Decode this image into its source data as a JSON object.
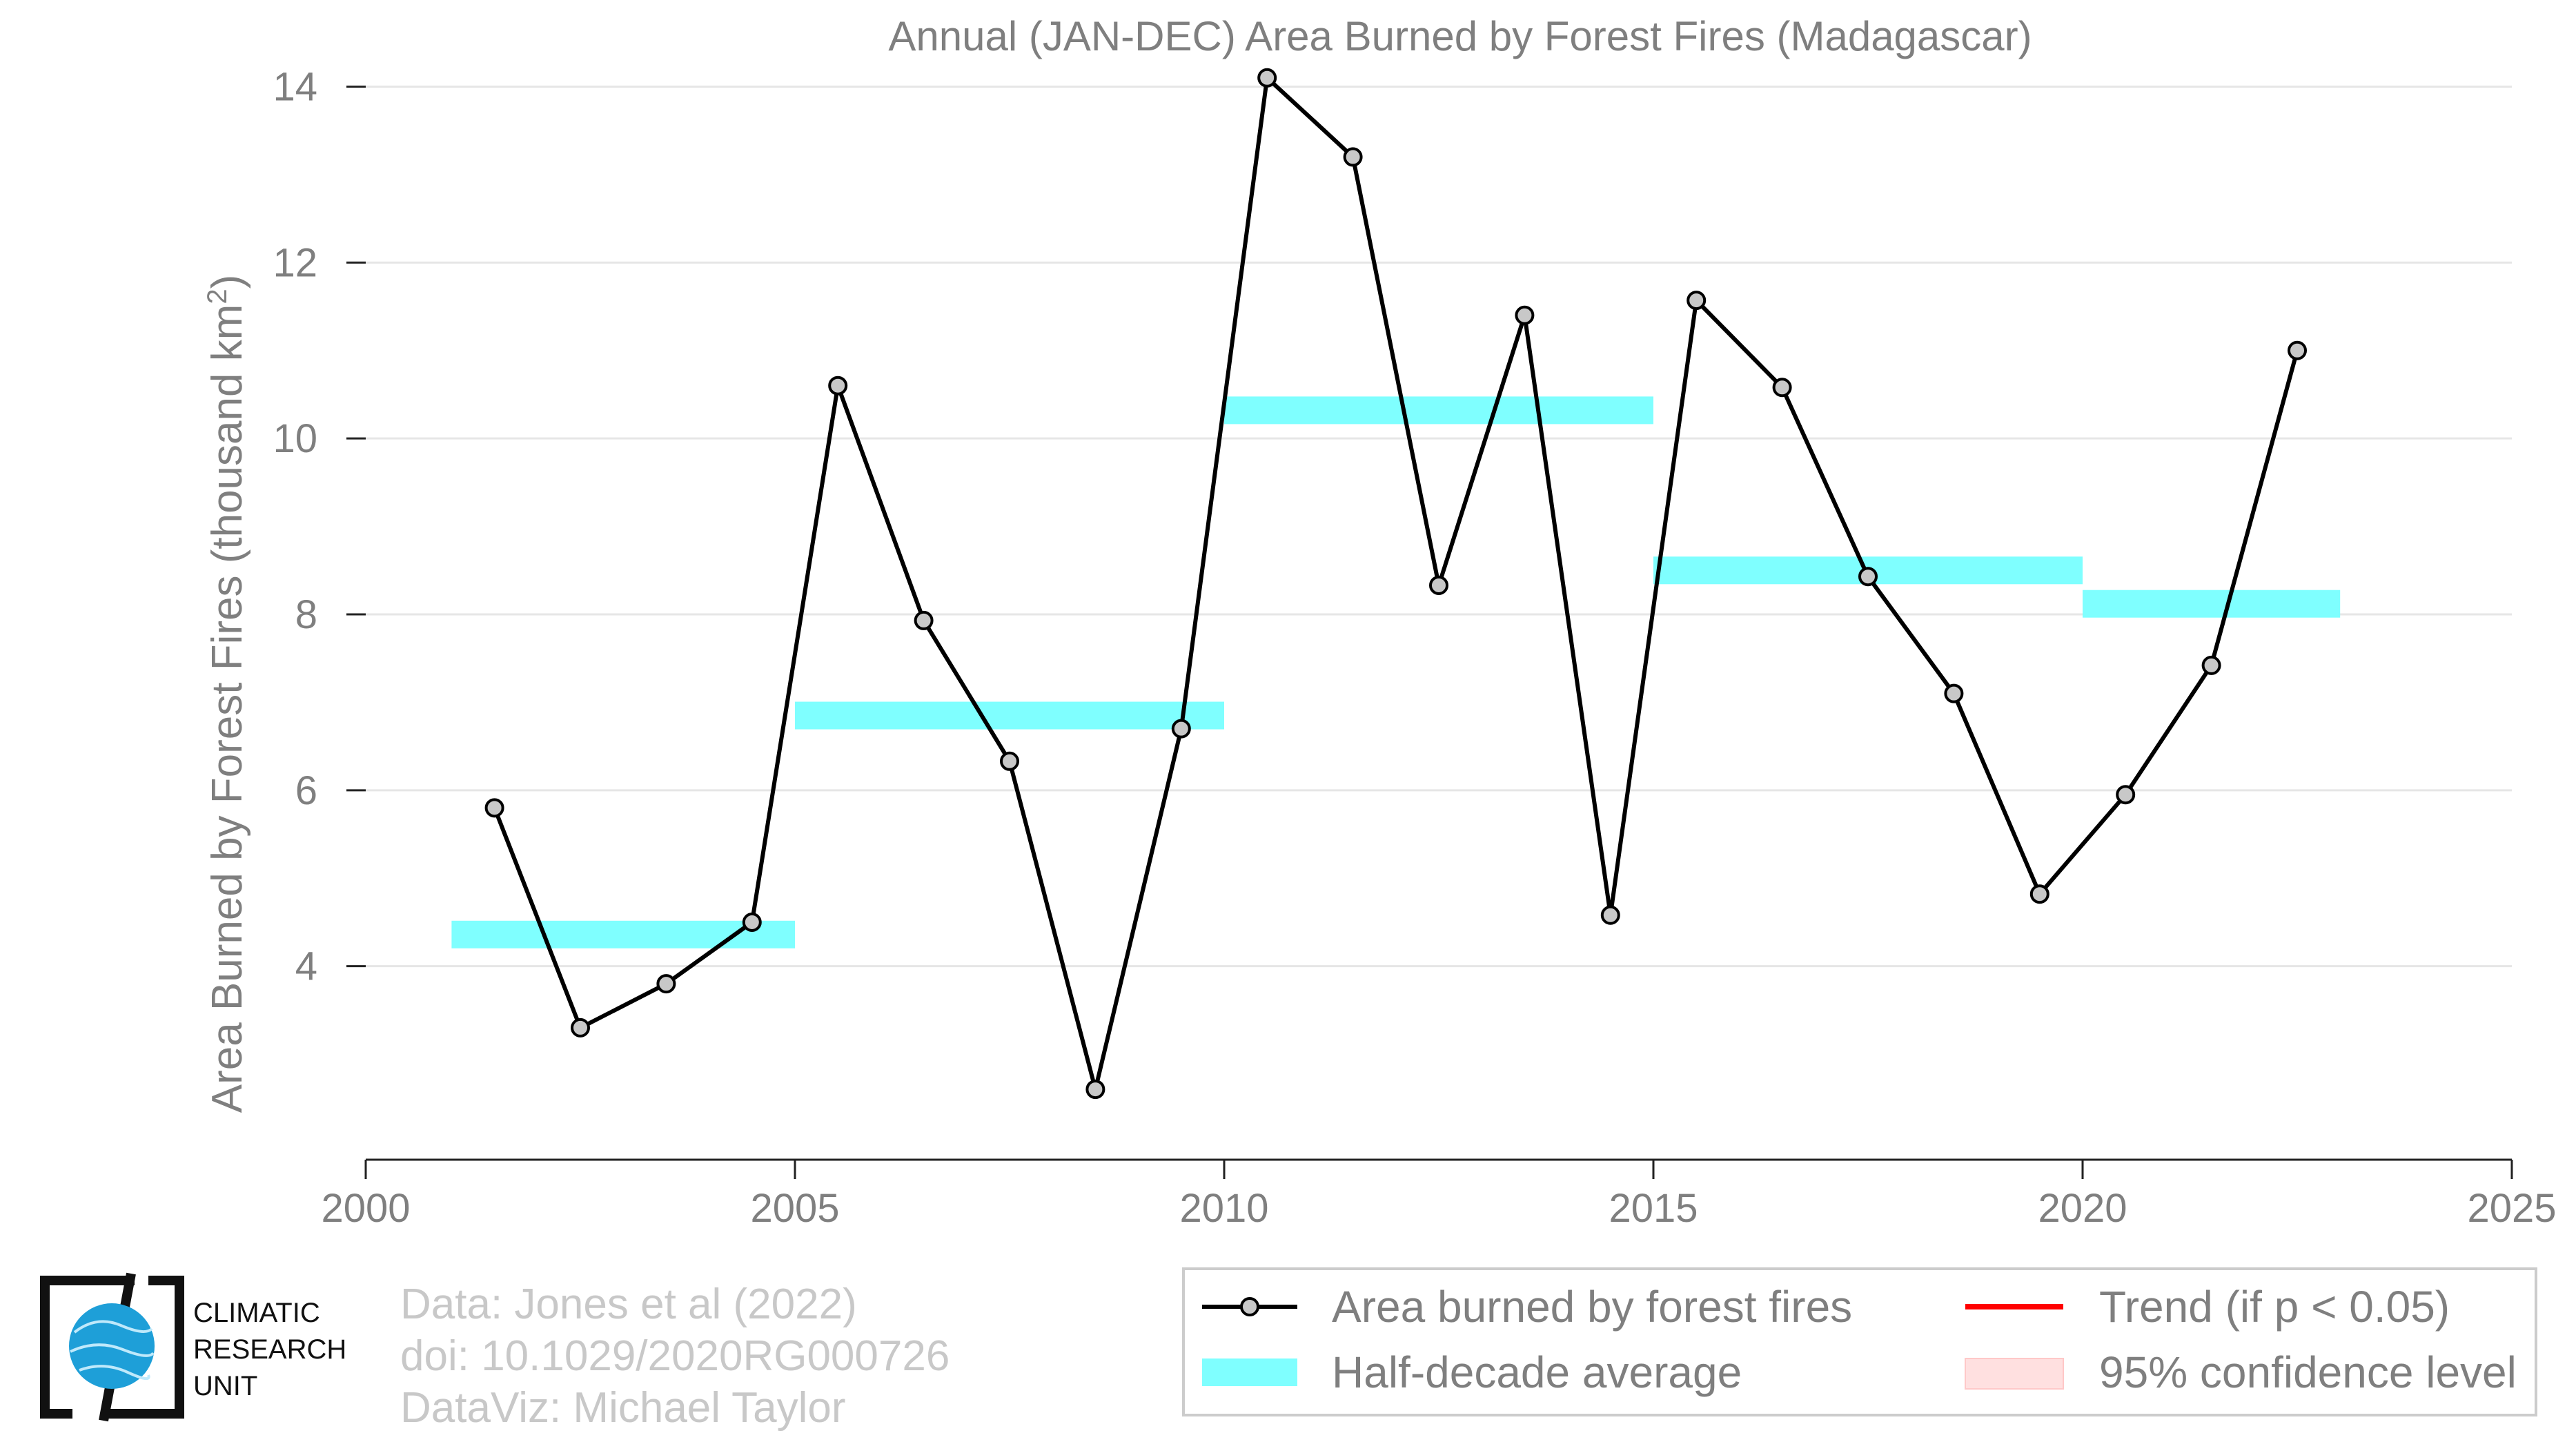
{
  "chart_data": {
    "type": "line",
    "title": "Annual (JAN-DEC) Area Burned by Forest Fires (Madagascar)",
    "xlabel": "",
    "ylabel": "Area Burned by Forest Fires (thousand km",
    "ylabel_sup": "2",
    "ylabel_close": ")",
    "xlim": [
      2000,
      2025
    ],
    "ylim": [
      1.8,
      14.2
    ],
    "x_ticks": [
      2000,
      2005,
      2010,
      2015,
      2020,
      2025
    ],
    "y_ticks": [
      4,
      6,
      8,
      10,
      12,
      14
    ],
    "grid": "horizontal",
    "legend_position": "bottom-right",
    "series": [
      {
        "name": "Area burned by forest fires",
        "kind": "line-markers",
        "color": "#000000",
        "marker_color": "#c8c8c8",
        "x": [
          2001.5,
          2002.5,
          2003.5,
          2004.5,
          2005.5,
          2006.5,
          2007.5,
          2008.5,
          2009.5,
          2010.5,
          2011.5,
          2012.5,
          2013.5,
          2014.5,
          2015.5,
          2016.5,
          2017.5,
          2018.5,
          2019.5,
          2020.5,
          2021.5,
          2022.5
        ],
        "y": [
          5.8,
          3.3,
          3.8,
          4.5,
          10.6,
          7.93,
          6.33,
          2.6,
          6.7,
          14.1,
          13.2,
          8.33,
          11.4,
          4.58,
          11.57,
          10.58,
          8.43,
          7.1,
          4.82,
          5.95,
          7.42,
          11.0
        ]
      },
      {
        "name": "Half-decade average",
        "kind": "segments",
        "color": "#7fffff",
        "segments": [
          {
            "x0": 2001,
            "x1": 2005,
            "y": 4.36
          },
          {
            "x0": 2005,
            "x1": 2010,
            "y": 6.85
          },
          {
            "x0": 2010,
            "x1": 2015,
            "y": 10.32
          },
          {
            "x0": 2015,
            "x1": 2020,
            "y": 8.5
          },
          {
            "x0": 2020,
            "x1": 2023,
            "y": 8.12
          }
        ]
      },
      {
        "name": "Trend (if p < 0.05)",
        "kind": "legend-only",
        "color": "#ff0000"
      },
      {
        "name": "95% confidence level",
        "kind": "legend-only",
        "color": "#ffe0e0"
      }
    ]
  },
  "credits": {
    "line1": "Data: Jones et al (2022)",
    "line2": "doi: 10.1029/2020RG000726",
    "line3": "DataViz: Michael Taylor"
  },
  "logo": {
    "icon": "cru-globe-logo",
    "line1": "CLIMATIC",
    "line2": "RESEARCH",
    "line3": "UNIT",
    "color": "#1e9fd8"
  }
}
